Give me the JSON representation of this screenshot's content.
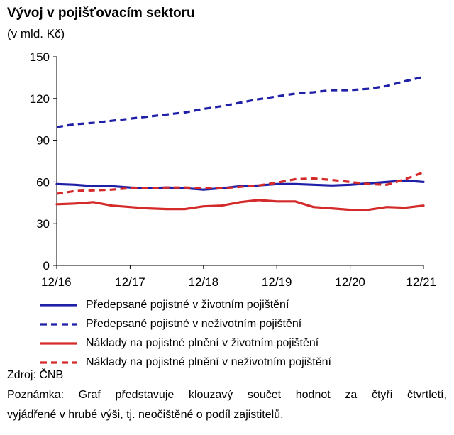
{
  "title": "Vývoj v pojišťovacím sektoru",
  "unit": "(v mld. Kč)",
  "source": "Zdroj: ČNB",
  "note_line1": "Poznámka: Graf představuje klouzavý součet hodnot za čtyři čtvrtletí,",
  "note_line2": "vyjádřené v hrubé výši, tj. neočištěné o podíl zajistitelů.",
  "chart_data": {
    "type": "line",
    "x": [
      "12/16",
      "3/17",
      "6/17",
      "9/17",
      "12/17",
      "3/18",
      "6/18",
      "9/18",
      "12/18",
      "3/19",
      "6/19",
      "9/19",
      "12/19",
      "3/20",
      "6/20",
      "9/20",
      "12/20",
      "3/21",
      "6/21",
      "9/21",
      "12/21"
    ],
    "x_tick_labels": [
      "12/16",
      "12/17",
      "12/18",
      "12/19",
      "12/20",
      "12/21"
    ],
    "y_ticks": [
      0,
      30,
      60,
      90,
      120,
      150
    ],
    "ylim": [
      0,
      150
    ],
    "grid": false,
    "legend_position": "bottom",
    "series": [
      {
        "name": "Předepsané pojistné v životním pojištění",
        "color": "#1f1fa8",
        "dash": "solid",
        "values": [
          58.5,
          58,
          57,
          57,
          56,
          55.5,
          56,
          55.5,
          54.5,
          55.5,
          57,
          57.5,
          58.5,
          58.5,
          58,
          57.5,
          58,
          59,
          60,
          61,
          60
        ]
      },
      {
        "name": "Předepsané pojistné v neživotním pojištění",
        "color": "#1f1fa8",
        "dash": "dashed",
        "values": [
          99.5,
          101.5,
          102.5,
          104,
          105.5,
          107,
          108.5,
          110,
          112.5,
          114.5,
          117,
          119.5,
          121.5,
          123.5,
          124.5,
          126,
          126,
          127,
          129,
          132.5,
          135.5
        ]
      },
      {
        "name": "Náklady na pojistné plnění v životním pojištění",
        "color": "#d42a2a",
        "dash": "solid",
        "values": [
          44,
          44.5,
          45.5,
          43,
          42,
          41,
          40.5,
          40.5,
          42.5,
          43,
          45.5,
          47,
          46,
          46,
          42,
          41,
          40,
          40,
          42,
          41.5,
          43
        ]
      },
      {
        "name": "Náklady na pojistné plnění v neživotním pojištění",
        "color": "#d42a2a",
        "dash": "dashed",
        "values": [
          51.5,
          53.5,
          54,
          54.5,
          55.5,
          55.5,
          56,
          56,
          55.5,
          55.5,
          56.5,
          57.5,
          59.5,
          62,
          62.5,
          61.5,
          60,
          58.5,
          58,
          62,
          67
        ]
      }
    ]
  }
}
